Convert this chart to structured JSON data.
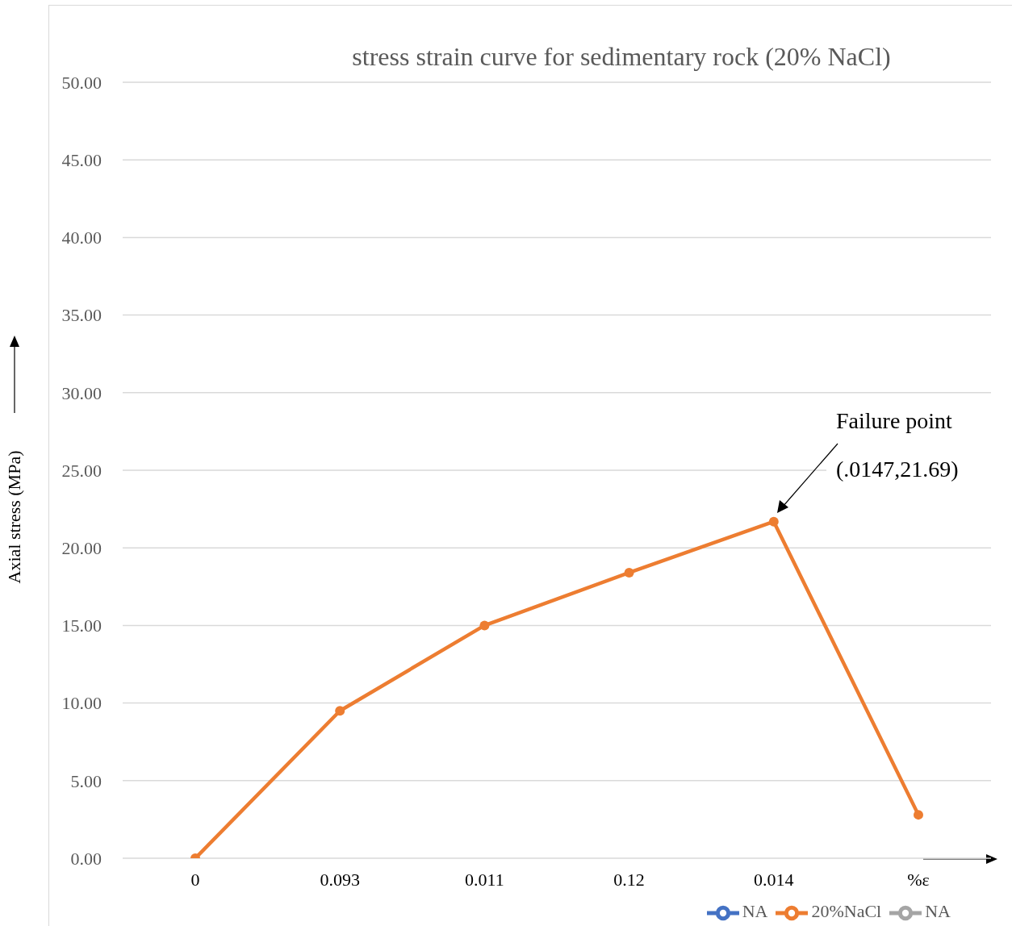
{
  "chart_data": {
    "type": "line",
    "title": "stress strain curve for sedimentary rock (20% NaCl)",
    "ylabel": "Axial stress (MPa)",
    "categories": [
      "0",
      "0.093",
      "0.011",
      "0.12",
      "0.014",
      "%ε"
    ],
    "series": [
      {
        "name": "NA",
        "color": "#4472c4",
        "values": [
          null,
          null,
          null,
          null,
          null,
          null
        ]
      },
      {
        "name": "20%NaCl",
        "color": "#ed7d31",
        "values": [
          0,
          9.5,
          15.0,
          18.4,
          21.69,
          2.8
        ]
      },
      {
        "name": "NA",
        "color": "#a5a5a5",
        "values": [
          null,
          null,
          null,
          null,
          null,
          null
        ]
      }
    ],
    "ylim": [
      0,
      50
    ],
    "yticks": [
      {
        "value": 0,
        "label": "0.00"
      },
      {
        "value": 5,
        "label": "5.00"
      },
      {
        "value": 10,
        "label": "10.00"
      },
      {
        "value": 15,
        "label": "15.00"
      },
      {
        "value": 20,
        "label": "20.00"
      },
      {
        "value": 25,
        "label": "25.00"
      },
      {
        "value": 30,
        "label": "30.00"
      },
      {
        "value": 35,
        "label": "35.00"
      },
      {
        "value": 40,
        "label": "40.00"
      },
      {
        "value": 45,
        "label": "45.00"
      },
      {
        "value": 50,
        "label": "50.00"
      }
    ],
    "annotations": [
      "Failure point (.0147,21.69)"
    ],
    "grid": "y",
    "legend": "bottom right",
    "marker": "circle",
    "line_style": "solid"
  }
}
